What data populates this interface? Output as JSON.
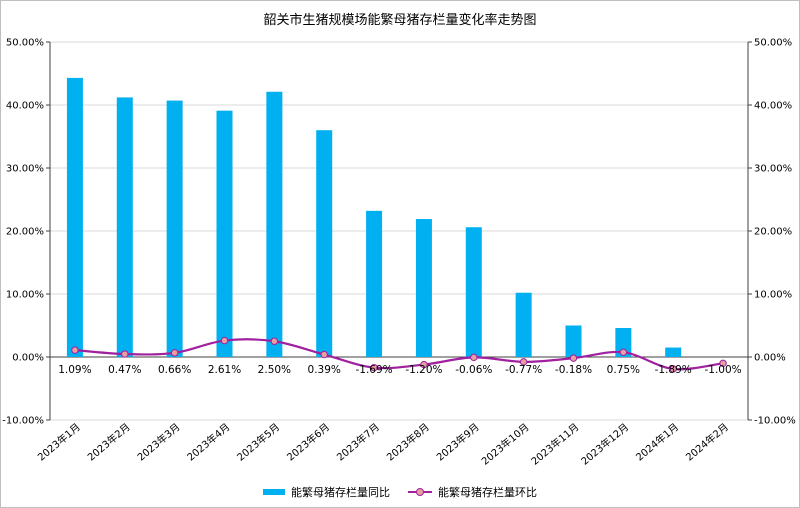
{
  "chart_data": {
    "type": "bar",
    "title": "韶关市生猪规模场能繁母猪存栏量变化率走势图",
    "categories": [
      "2023年1月",
      "2023年2月",
      "2023年3月",
      "2023年4月",
      "2023年5月",
      "2023年6月",
      "2023年7月",
      "2023年8月",
      "2023年9月",
      "2023年10月",
      "2023年11月",
      "2023年12月",
      "2024年1月",
      "2024年2月"
    ],
    "series": [
      {
        "name": "能繁母猪存栏量同比",
        "type": "bar",
        "axis": "left",
        "color": "#00b0f0",
        "values": [
          44.3,
          41.2,
          40.7,
          39.1,
          42.1,
          36.0,
          23.2,
          21.9,
          20.6,
          10.2,
          5.0,
          4.6,
          1.5,
          0.0
        ]
      },
      {
        "name": "能繁母猪存栏量环比",
        "type": "line",
        "axis": "right",
        "color": "#a020a0",
        "marker_color": "#e6a0a0",
        "values": [
          1.09,
          0.47,
          0.66,
          2.61,
          2.5,
          0.39,
          -1.69,
          -1.2,
          -0.06,
          -0.77,
          -0.18,
          0.75,
          -1.89,
          -1.0
        ],
        "labels": [
          "1.09%",
          "0.47%",
          "0.66%",
          "2.61%",
          "2.50%",
          "0.39%",
          "-1.69%",
          "-1.20%",
          "-0.06%",
          "-0.77%",
          "-0.18%",
          "0.75%",
          "-1.89%",
          "-1.00%"
        ]
      }
    ],
    "ylim": [
      -10,
      50
    ],
    "y2lim": [
      -10,
      50
    ],
    "yticks": [
      "-10.00%",
      "0.00%",
      "10.00%",
      "20.00%",
      "30.00%",
      "40.00%",
      "50.00%"
    ],
    "y2ticks": [
      "-10.00%",
      "0.00%",
      "10.00%",
      "20.00%",
      "30.00%",
      "40.00%",
      "50.00%"
    ],
    "grid": true,
    "legend_position": "bottom"
  }
}
